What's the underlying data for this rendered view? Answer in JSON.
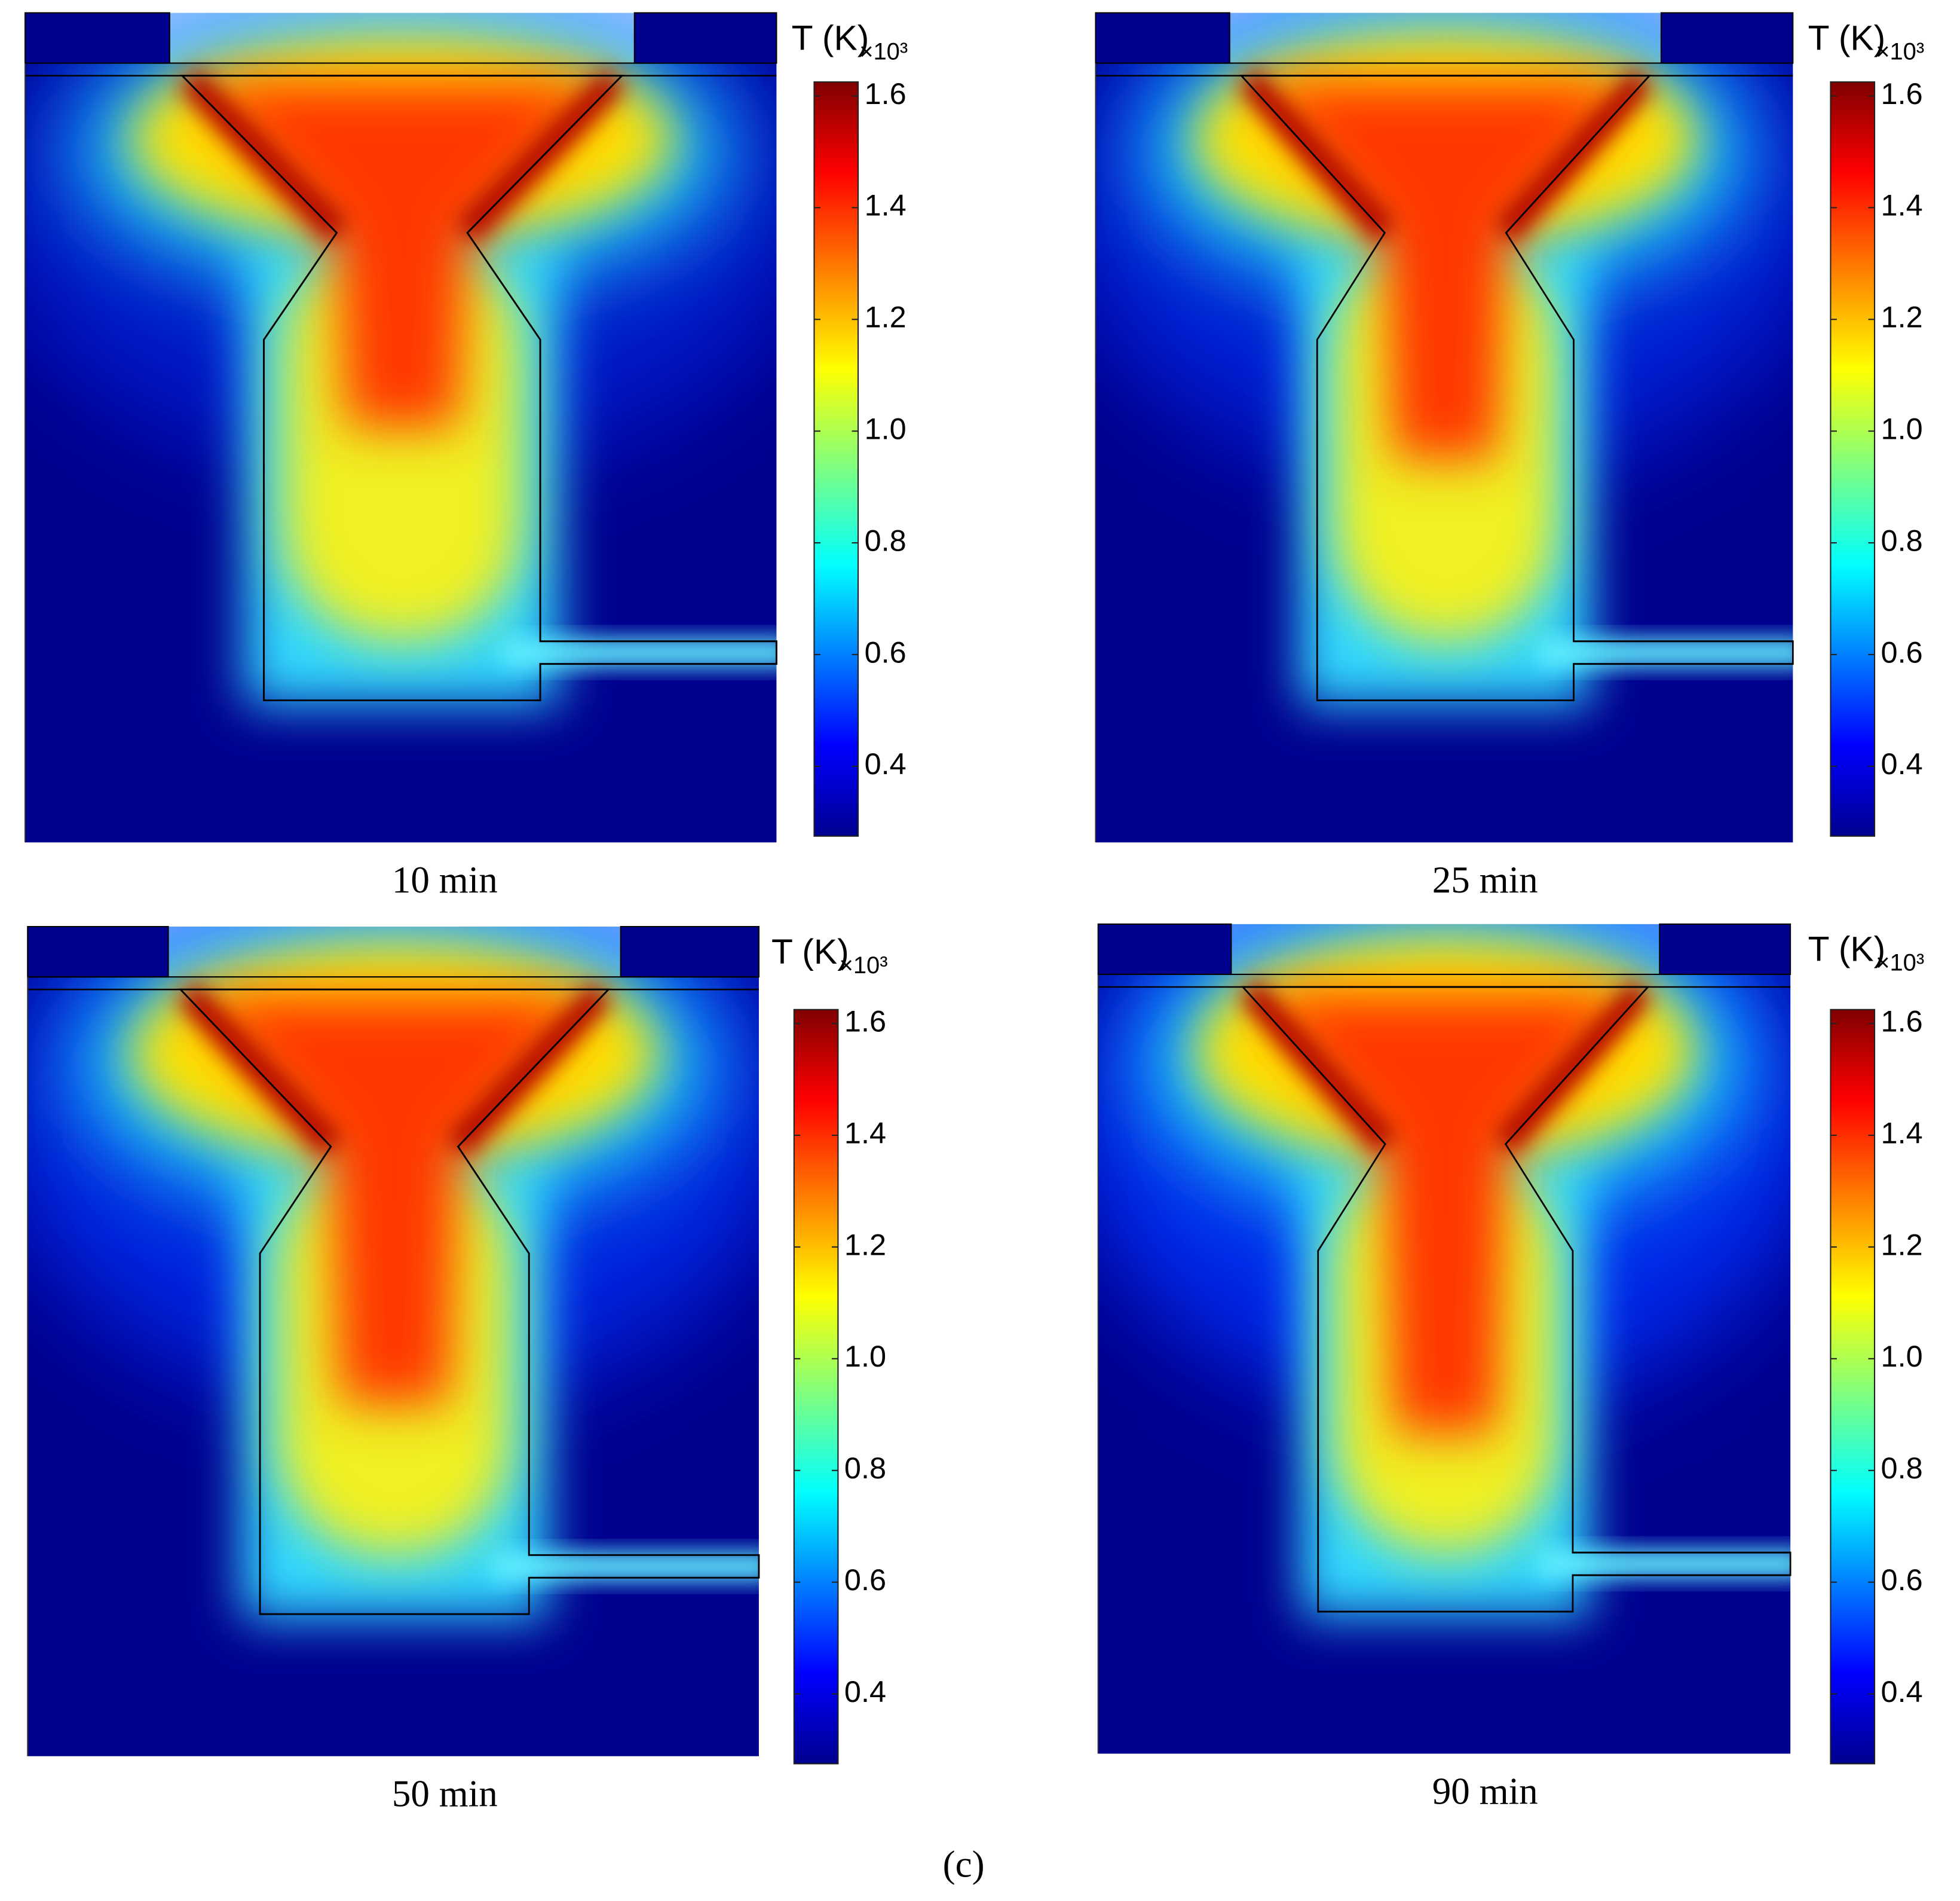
{
  "chart_data": [
    {
      "type": "heatmap",
      "title": "10 min",
      "colorbar_label": "T (K)",
      "colorbar_multiplier": "×10³",
      "colormap": "jet",
      "clim": [
        0.275,
        1.625
      ],
      "cticks": [
        0.4,
        0.6,
        0.8,
        {
          "value": 1,
          "label": "1.0"
        },
        1.2,
        1.4,
        1.6
      ]
    },
    {
      "type": "heatmap",
      "title": "25 min",
      "colorbar_label": "T (K)",
      "colorbar_multiplier": "×10³",
      "colormap": "jet",
      "clim": [
        0.275,
        1.625
      ],
      "cticks": [
        0.4,
        0.6,
        0.8,
        {
          "value": 1,
          "label": "1.0"
        },
        1.2,
        1.4,
        1.6
      ]
    },
    {
      "type": "heatmap",
      "title": "50 min",
      "colorbar_label": "T (K)",
      "colorbar_multiplier": "×10³",
      "colormap": "jet",
      "clim": [
        0.275,
        1.625
      ],
      "cticks": [
        0.4,
        0.6,
        0.8,
        {
          "value": 1,
          "label": "1.0"
        },
        1.2,
        1.4,
        1.6
      ]
    },
    {
      "type": "heatmap",
      "title": "90 min",
      "colorbar_label": "T (K)",
      "colorbar_multiplier": "×10³",
      "colormap": "jet",
      "clim": [
        0.275,
        1.625
      ],
      "cticks": [
        0.4,
        0.6,
        0.8,
        {
          "value": 1,
          "label": "1.0"
        },
        1.2,
        1.4,
        1.6
      ]
    }
  ],
  "figure_label": "(c)"
}
